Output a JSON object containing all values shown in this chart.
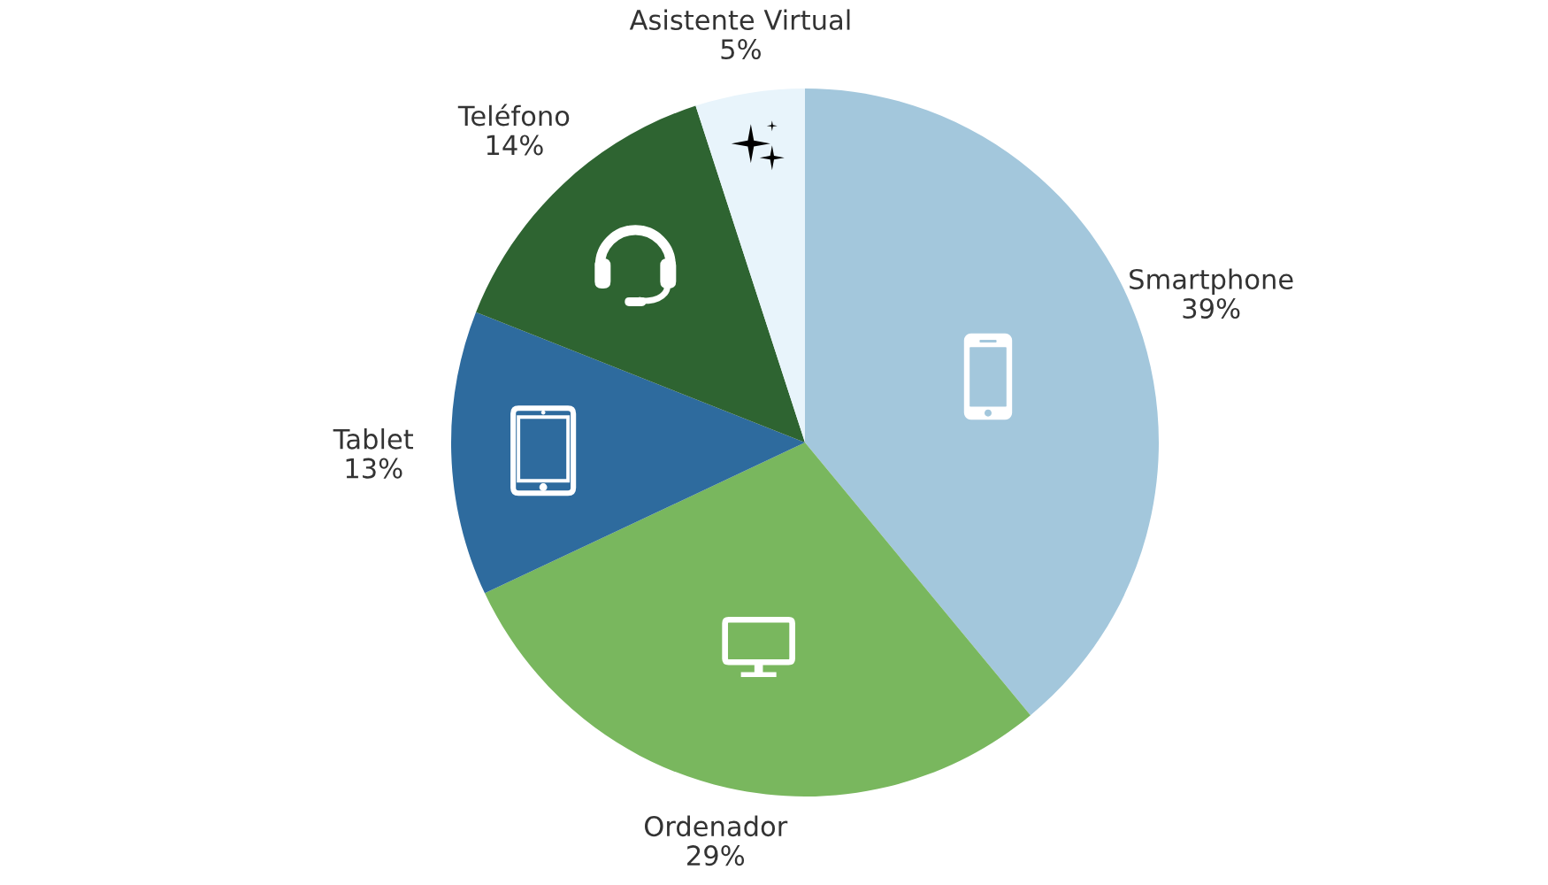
{
  "chart_data": {
    "type": "pie",
    "categories": [
      "Smartphone",
      "Ordenador",
      "Tablet",
      "Teléfono",
      "Asistente Virtual"
    ],
    "values": [
      39,
      29,
      13,
      14,
      5
    ],
    "colors": [
      "#a3c7dc",
      "#79b75e",
      "#2e6b9e",
      "#2e6431",
      "#e8f4fb"
    ],
    "value_labels": [
      "39%",
      "29%",
      "13%",
      "14%",
      "5%"
    ]
  }
}
